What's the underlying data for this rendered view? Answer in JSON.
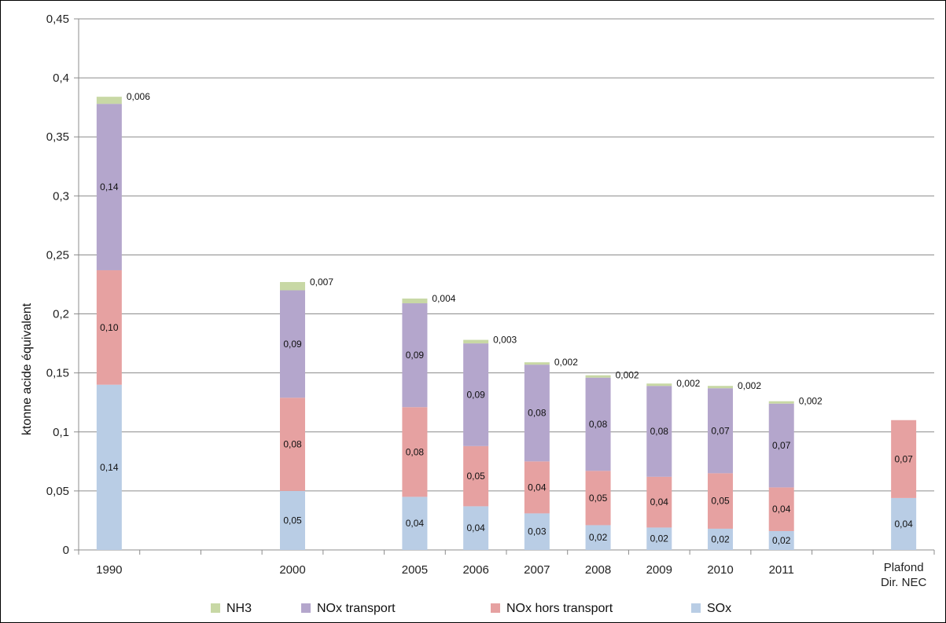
{
  "chart_data": {
    "type": "bar",
    "stacked": true,
    "ylabel": "ktonne acide équivalent",
    "ylim": [
      0,
      0.45
    ],
    "yticks": [
      "0",
      "0,05",
      "0,1",
      "0,15",
      "0,2",
      "0,25",
      "0,3",
      "0,35",
      "0,4",
      "0,45"
    ],
    "grid": true,
    "legend_position": "bottom",
    "categories": [
      "1990",
      "2000",
      "2005",
      "2006",
      "2007",
      "2008",
      "2009",
      "2010",
      "2011",
      "Plafond Dir. NEC"
    ],
    "category_slots": [
      0,
      3,
      5,
      6,
      7,
      8,
      9,
      10,
      11,
      13
    ],
    "series": [
      {
        "name": "SOx",
        "color": "#b9cde5",
        "values": [
          0.14,
          0.05,
          0.045,
          0.037,
          0.031,
          0.021,
          0.019,
          0.018,
          0.016,
          0.044
        ],
        "labels": [
          "0,14",
          "0,05",
          "0,04",
          "0,04",
          "0,03",
          "0,02",
          "0,02",
          "0,02",
          "0,02",
          "0,04"
        ]
      },
      {
        "name": "NOx hors transport",
        "color": "#e6a1a1",
        "values": [
          0.097,
          0.079,
          0.076,
          0.051,
          0.044,
          0.046,
          0.043,
          0.047,
          0.037,
          0.066
        ],
        "labels": [
          "0,10",
          "0,08",
          "0,08",
          "0,05",
          "0,04",
          "0,05",
          "0,04",
          "0,05",
          "0,04",
          "0,07"
        ]
      },
      {
        "name": "NOx transport",
        "color": "#b4a6cc",
        "values": [
          0.141,
          0.091,
          0.088,
          0.087,
          0.082,
          0.079,
          0.077,
          0.072,
          0.071,
          0
        ],
        "labels": [
          "0,14",
          "0,09",
          "0,09",
          "0,09",
          "0,08",
          "0,08",
          "0,08",
          "0,07",
          "0,07",
          ""
        ]
      },
      {
        "name": "NH3",
        "color": "#c8d8a5",
        "values": [
          0.006,
          0.007,
          0.004,
          0.003,
          0.002,
          0.002,
          0.002,
          0.002,
          0.002,
          0
        ],
        "labels": [
          "0,006",
          "0,007",
          "0,004",
          "0,003",
          "0,002",
          "0,002",
          "0,002",
          "0,002",
          "0,002",
          ""
        ]
      }
    ],
    "legend_order": [
      "NH3",
      "NOx transport",
      "NOx hors transport",
      "SOx"
    ]
  }
}
